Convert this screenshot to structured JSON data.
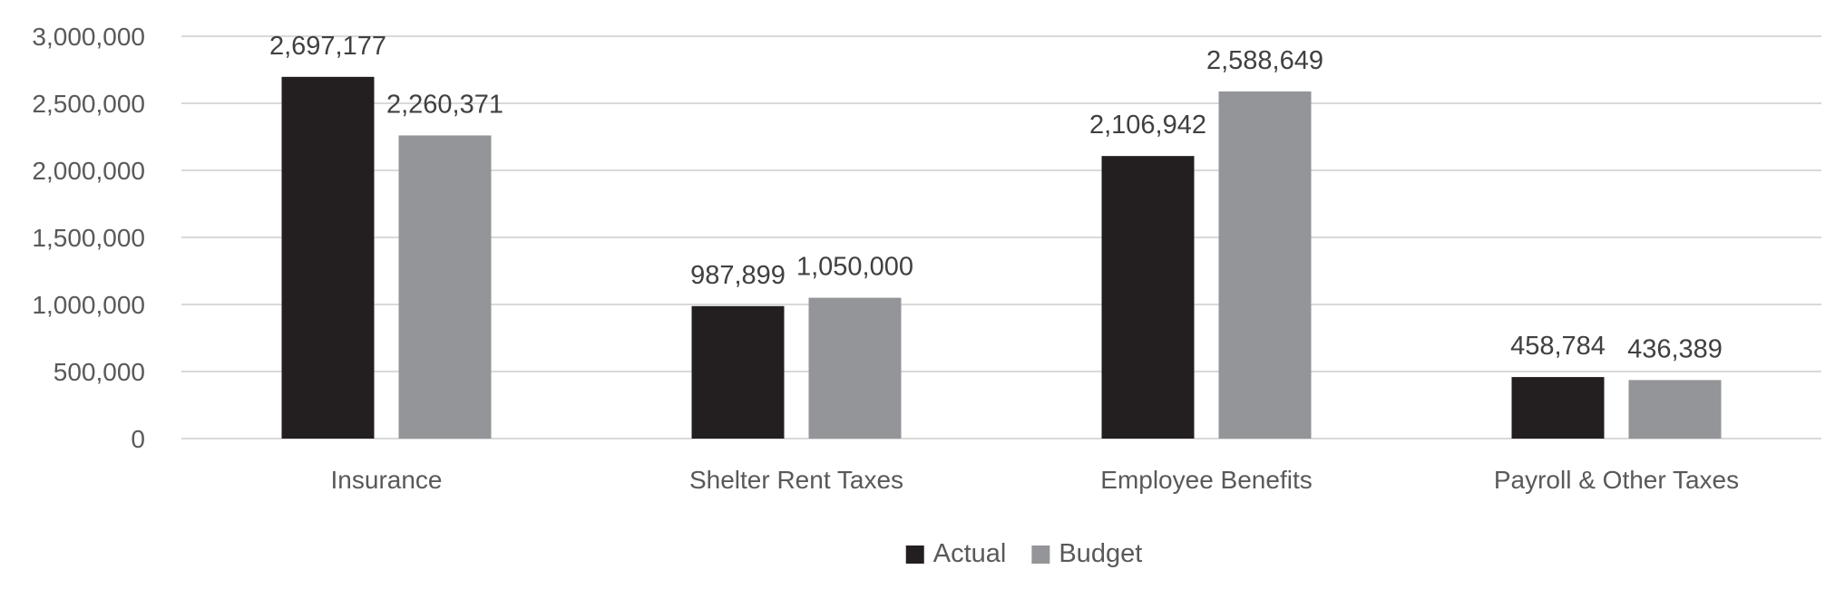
{
  "chart_data": {
    "type": "bar",
    "categories": [
      "Insurance",
      "Shelter Rent Taxes",
      "Employee Benefits",
      "Payroll & Other Taxes"
    ],
    "series": [
      {
        "name": "Actual",
        "values": [
          2697177,
          987899,
          2106942,
          458784
        ],
        "color": "#231f20"
      },
      {
        "name": "Budget",
        "values": [
          2260371,
          1050000,
          2588649,
          436389
        ],
        "color": "#939598"
      }
    ],
    "data_labels": [
      [
        "2,697,177",
        "987,899",
        "2,106,942",
        "458,784"
      ],
      [
        "2,260,371",
        "1,050,000",
        "2,588,649",
        "436,389"
      ]
    ],
    "yticks": [
      0,
      500000,
      1000000,
      1500000,
      2000000,
      2500000,
      3000000
    ],
    "ytick_labels": [
      "0",
      "500,000",
      "1,000,000",
      "1,500,000",
      "2,000,000",
      "2,500,000",
      "3,000,000"
    ],
    "ylim": [
      0,
      3000000
    ],
    "grid": true,
    "legend": "bottom-center",
    "title": "",
    "xlabel": "",
    "ylabel": ""
  }
}
